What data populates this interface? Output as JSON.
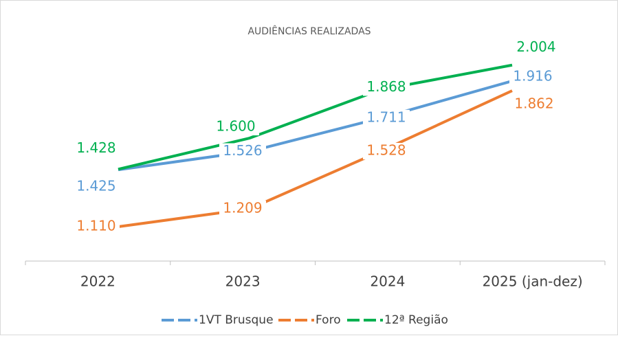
{
  "chart_data": {
    "type": "line",
    "title": "AUDIÊNCIAS REALIZADAS",
    "categories": [
      "2022",
      "2023",
      "2024",
      "2025 (jan-dez)"
    ],
    "series": [
      {
        "name": "1VT Brusque",
        "color": "#5b9bd5",
        "values": [
          1425,
          1526,
          1711,
          1916
        ],
        "value_labels": [
          "1.425",
          "1.526",
          "1.711",
          "1.916"
        ]
      },
      {
        "name": "Foro",
        "color": "#ed7d31",
        "values": [
          1110,
          1209,
          1528,
          1862
        ],
        "value_labels": [
          "1.110",
          "1.209",
          "1.528",
          "1.862"
        ]
      },
      {
        "name": "12ª Região",
        "color": "#00b050",
        "values": [
          1428,
          1600,
          1868,
          2004
        ],
        "value_labels": [
          "1.428",
          "1.600",
          "1.868",
          "2.004"
        ]
      }
    ],
    "ylim": [
      920,
      2250
    ],
    "legend": "bottom"
  }
}
